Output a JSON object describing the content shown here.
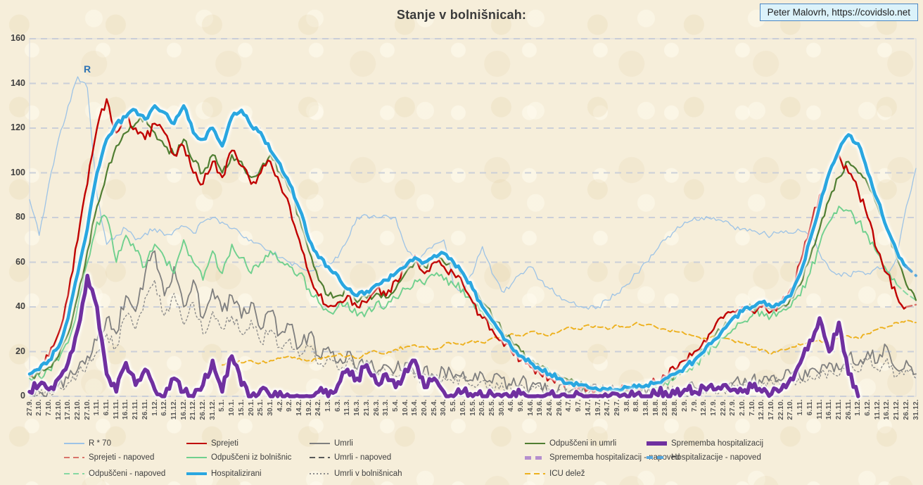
{
  "title": "Stanje v bolnišnicah:",
  "credit": "Peter Malovrh, https://covidslo.net",
  "annotation": {
    "r_label": "R"
  },
  "legend": {
    "items": [
      {
        "label": "R * 70",
        "series": "r70",
        "pos": "r1 c1"
      },
      {
        "label": "Sprejeti",
        "series": "sprejeti",
        "pos": "r1 c2"
      },
      {
        "label": "Umrli",
        "series": "umrli",
        "pos": "r1 c3"
      },
      {
        "label": "Odpuščeni in umrli",
        "series": "odpusceni_in_umrli",
        "pos": "r1 c4"
      },
      {
        "label": "Sprememba hospitalizacij",
        "series": "sprememba",
        "pos": "r1 c5"
      },
      {
        "label": "Sprejeti - napoved",
        "series": "sprejeti_napoved",
        "pos": "r2 c1"
      },
      {
        "label": "Odpuščeni iz bolnišnic",
        "series": "odpusceni_iz_bolnisnic",
        "pos": "r2 c2"
      },
      {
        "label": "Umrli - napoved",
        "series": "umrli_napoved",
        "pos": "r2 c3"
      },
      {
        "label": "Sprememba hospitalizacij - napoved",
        "series": "sprememba_napoved",
        "pos": "r2 c4"
      },
      {
        "label": "Hospitalizacije - napoved",
        "series": "hospitalizacije_napoved",
        "pos": "r2 c5"
      },
      {
        "label": "Odpuščeni - napoved",
        "series": "odpusceni_napoved",
        "pos": "r3 c1"
      },
      {
        "label": "Hospitalizirani",
        "series": "hospitalizirani",
        "pos": "r3 c2"
      },
      {
        "label": "Umrli v bolnišnicah",
        "series": "umrli_v_bolnisnicah",
        "pos": "r3 c3"
      },
      {
        "label": "ICU delež",
        "series": "icu_delez",
        "pos": "r3 c4"
      }
    ]
  },
  "chart_data": {
    "type": "line",
    "title": "Stanje v bolnišnicah:",
    "xlabel": "",
    "ylabel": "",
    "ylim": [
      0,
      160
    ],
    "y_ticks": [
      0,
      20,
      40,
      60,
      80,
      100,
      120,
      140,
      160
    ],
    "grid": "horizontal-dashed",
    "legend_position": "bottom",
    "categories": [
      "27.9.",
      "2.10.",
      "7.10.",
      "12.10.",
      "17.10.",
      "22.10.",
      "27.10.",
      "1.11.",
      "6.11.",
      "11.11.",
      "16.11.",
      "21.11.",
      "26.11.",
      "1.12.",
      "6.12.",
      "11.12.",
      "16.12.",
      "21.12.",
      "26.12.",
      "31.12.",
      "5.1.",
      "10.1.",
      "15.1.",
      "20.1.",
      "25.1.",
      "30.1.",
      "4.2.",
      "9.2.",
      "14.2.",
      "19.2.",
      "24.2.",
      "1.3.",
      "6.3.",
      "11.3.",
      "16.3.",
      "21.3.",
      "26.3.",
      "31.3.",
      "5.4.",
      "10.4.",
      "15.4.",
      "20.4.",
      "25.4.",
      "30.4.",
      "5.5.",
      "10.5.",
      "15.5.",
      "20.5.",
      "25.5.",
      "30.5.",
      "4.6.",
      "9.6.",
      "14.6.",
      "19.6.",
      "24.6.",
      "29.6.",
      "4.7.",
      "9.7.",
      "14.7.",
      "19.7.",
      "24.7.",
      "29.7.",
      "3.8.",
      "8.8.",
      "13.8.",
      "18.8.",
      "23.8.",
      "28.8.",
      "2.9.",
      "7.9.",
      "12.9.",
      "17.9.",
      "22.9.",
      "27.9.",
      "2.10.",
      "7.10.",
      "12.10.",
      "17.10.",
      "22.10.",
      "27.10.",
      "1.11.",
      "6.11.",
      "11.11.",
      "16.11.",
      "21.11.",
      "26.11.",
      "1.12.",
      "6.12.",
      "11.12.",
      "16.12.",
      "21.12.",
      "26.12.",
      "31.12."
    ],
    "series": [
      {
        "key": "r70",
        "name": "R * 70",
        "color": "#9dc3e6",
        "width": 1.3,
        "dash": "",
        "glow": false,
        "jitter": 1.3,
        "values": [
          88,
          72,
          95,
          115,
          130,
          143,
          138,
          90,
          68,
          72,
          75,
          70,
          73,
          75,
          72,
          74,
          76,
          73,
          78,
          80,
          78,
          75,
          72,
          70,
          68,
          65,
          62,
          60,
          58,
          56,
          58,
          60,
          62,
          70,
          80,
          81,
          80,
          81,
          80,
          67,
          60,
          64,
          68,
          70,
          50,
          47,
          55,
          67,
          55,
          47,
          50,
          55,
          58,
          52,
          48,
          45,
          42,
          40,
          39,
          40,
          43,
          46,
          50,
          55,
          60,
          65,
          70,
          74,
          78,
          80,
          79,
          80,
          78,
          76,
          75,
          74,
          73,
          72,
          74,
          73,
          74,
          73,
          64,
          57,
          55,
          54,
          56,
          55,
          58,
          55,
          62,
          85,
          102
        ]
      },
      {
        "key": "umrli_v_bolnisnicah",
        "name": "Umrli v bolnišnicah",
        "color": "#8c8c8c",
        "width": 1.4,
        "dash": "2 3.5",
        "glow": false,
        "jitter": 3,
        "values": [
          1,
          1,
          2,
          4,
          6,
          10,
          14,
          20,
          28,
          22,
          36,
          30,
          44,
          52,
          36,
          46,
          32,
          42,
          28,
          38,
          30,
          36,
          28,
          34,
          24,
          30,
          22,
          26,
          18,
          22,
          14,
          18,
          12,
          16,
          10,
          13,
          8,
          11,
          9,
          12,
          8,
          10,
          7,
          9,
          6,
          8,
          5,
          7,
          4,
          6,
          3,
          5,
          3,
          4,
          2,
          3,
          1,
          3,
          1,
          2,
          1,
          1,
          1,
          1,
          1,
          1,
          1,
          2,
          1,
          3,
          2,
          4,
          3,
          5,
          4,
          6,
          5,
          7,
          5,
          8,
          6,
          9,
          8,
          12,
          9,
          14,
          11,
          16,
          12,
          17,
          9,
          12,
          8
        ]
      },
      {
        "key": "umrli",
        "name": "Umrli",
        "color": "#7f7f7f",
        "width": 1.8,
        "dash": "",
        "glow": false,
        "jitter": 3.5,
        "values": [
          1,
          2,
          3,
          5,
          8,
          12,
          18,
          25,
          35,
          28,
          45,
          38,
          55,
          65,
          45,
          58,
          40,
          52,
          35,
          48,
          38,
          45,
          35,
          42,
          30,
          38,
          28,
          32,
          22,
          28,
          18,
          22,
          15,
          20,
          12,
          16,
          10,
          14,
          12,
          15,
          10,
          13,
          9,
          12,
          8,
          11,
          7,
          10,
          6,
          8,
          5,
          7,
          4,
          6,
          3,
          5,
          2,
          4,
          1,
          3,
          1,
          2,
          1,
          2,
          1,
          2,
          1,
          3,
          2,
          4,
          3,
          5,
          4,
          6,
          5,
          8,
          6,
          9,
          7,
          10,
          8,
          12,
          10,
          15,
          12,
          18,
          14,
          20,
          15,
          22,
          12,
          16,
          10
        ]
      },
      {
        "key": "icu_delez",
        "name": "ICU delež",
        "color": "#edb11f",
        "width": 1.9,
        "dash": "7 4",
        "glow": false,
        "jitter": 0.7,
        "start": 20,
        "values": [
          14,
          16,
          15,
          16,
          15,
          16,
          17,
          18,
          17,
          16,
          17,
          18,
          19,
          18,
          17,
          19,
          20,
          19,
          21,
          22,
          23,
          22,
          21,
          23,
          24,
          23,
          25,
          24,
          26,
          27,
          28,
          27,
          29,
          28,
          27,
          29,
          31,
          30,
          32,
          31,
          30,
          32,
          31,
          33,
          32,
          31,
          30,
          29,
          28,
          27,
          26,
          27,
          26,
          25,
          24,
          22,
          21,
          19,
          21,
          22,
          23,
          24,
          25,
          24,
          26,
          27,
          26,
          28,
          30,
          31,
          33,
          34,
          33
        ]
      },
      {
        "key": "odpusceni_iz_bolnisnic",
        "name": "Odpuščeni iz bolnišnic",
        "color": "#70d08e",
        "width": 1.9,
        "dash": "",
        "glow": false,
        "jitter": 2.2,
        "values": [
          8,
          9,
          12,
          16,
          24,
          40,
          60,
          78,
          80,
          60,
          72,
          65,
          58,
          68,
          62,
          55,
          70,
          60,
          52,
          65,
          55,
          68,
          62,
          55,
          60,
          65,
          60,
          58,
          55,
          48,
          42,
          38,
          40,
          42,
          36,
          38,
          42,
          40,
          44,
          48,
          52,
          50,
          54,
          52,
          50,
          48,
          42,
          38,
          32,
          27,
          22,
          18,
          15,
          12,
          10,
          8,
          6,
          5,
          4,
          3,
          2,
          2,
          3,
          3,
          4,
          4,
          6,
          8,
          11,
          14,
          18,
          22,
          26,
          30,
          33,
          36,
          38,
          36,
          38,
          40,
          45,
          55,
          68,
          78,
          85,
          83,
          78,
          72,
          64,
          56,
          50,
          null,
          null
        ]
      },
      {
        "key": "odpusceni_napoved",
        "name": "Odpuščeni - napoved",
        "color": "#86d8a2",
        "width": 2,
        "dash": "8 5",
        "glow": false,
        "jitter": 0,
        "start": 90,
        "values": [
          50,
          46,
          43
        ]
      },
      {
        "key": "odpusceni_in_umrli",
        "name": "Odpuščeni in umrli",
        "color": "#507e32",
        "width": 2.2,
        "dash": "",
        "glow": false,
        "jitter": 1.8,
        "values": [
          9,
          10,
          13,
          18,
          28,
          45,
          65,
          85,
          100,
          112,
          118,
          122,
          125,
          118,
          112,
          108,
          115,
          105,
          100,
          108,
          100,
          108,
          105,
          98,
          102,
          108,
          100,
          92,
          80,
          65,
          52,
          45,
          45,
          48,
          42,
          44,
          46,
          44,
          48,
          55,
          60,
          58,
          62,
          60,
          58,
          55,
          48,
          42,
          36,
          30,
          25,
          20,
          16,
          13,
          11,
          9,
          7,
          5,
          4,
          3,
          3,
          3,
          3,
          4,
          4,
          5,
          7,
          10,
          13,
          17,
          21,
          26,
          31,
          35,
          38,
          40,
          41,
          39,
          40,
          44,
          50,
          62,
          75,
          88,
          98,
          105,
          100,
          95,
          85,
          75,
          62,
          50,
          43
        ]
      },
      {
        "key": "sprejeti",
        "name": "Sprejeti",
        "color": "#c00000",
        "width": 2.4,
        "dash": "",
        "glow": false,
        "jitter": 2.2,
        "values": [
          10,
          13,
          18,
          28,
          45,
          70,
          95,
          120,
          133,
          118,
          125,
          120,
          115,
          122,
          118,
          108,
          112,
          100,
          95,
          105,
          98,
          110,
          103,
          95,
          100,
          105,
          95,
          85,
          70,
          55,
          45,
          40,
          42,
          45,
          40,
          42,
          48,
          45,
          52,
          58,
          63,
          55,
          60,
          58,
          55,
          50,
          42,
          35,
          30,
          25,
          20,
          16,
          13,
          10,
          8,
          7,
          5,
          4,
          3,
          3,
          2,
          3,
          3,
          4,
          5,
          6,
          9,
          12,
          16,
          20,
          25,
          30,
          35,
          38,
          40,
          38,
          40,
          38,
          42,
          48,
          60,
          75,
          90,
          100,
          108,
          100,
          92,
          80,
          65,
          55,
          45,
          40,
          null
        ]
      },
      {
        "key": "sprejeti_napoved",
        "name": "Sprejeti - napoved",
        "color": "#d9736a",
        "width": 2.4,
        "dash": "8 5",
        "glow": false,
        "jitter": 0,
        "start": 91,
        "values": [
          40,
          41
        ]
      },
      {
        "key": "umrli_napoved",
        "name": "Umrli - napoved",
        "color": "#595959",
        "width": 1.8,
        "dash": "8 5",
        "glow": false,
        "jitter": 0,
        "values": []
      },
      {
        "key": "hospitalizirani",
        "name": "Hospitalizirani",
        "color": "#2aa7e0",
        "width": 4.6,
        "dash": "",
        "glow": true,
        "jitter": 1.2,
        "values": [
          10,
          12,
          16,
          22,
          35,
          55,
          75,
          100,
          115,
          122,
          125,
          128,
          124,
          130,
          127,
          122,
          130,
          118,
          115,
          120,
          112,
          125,
          128,
          121,
          118,
          110,
          104,
          95,
          84,
          70,
          62,
          58,
          54,
          48,
          45,
          47,
          50,
          52,
          55,
          58,
          62,
          60,
          63,
          64,
          60,
          55,
          48,
          40,
          34,
          28,
          22,
          18,
          15,
          12,
          10,
          8,
          6,
          5,
          4,
          3,
          3,
          3,
          4,
          4,
          5,
          6,
          8,
          10,
          13,
          16,
          20,
          25,
          30,
          35,
          38,
          40,
          42,
          40,
          42,
          45,
          55,
          70,
          85,
          100,
          110,
          117,
          113,
          100,
          88,
          75,
          65,
          58,
          null
        ]
      },
      {
        "key": "hospitalizacije_napoved",
        "name": "Hospitalizacije - napoved",
        "color": "#58a7dd",
        "width": 3.8,
        "dash": "10 8",
        "glow": false,
        "jitter": 0,
        "start": 91,
        "values": [
          58,
          54
        ]
      },
      {
        "key": "sprememba",
        "name": "Sprememba hospitalizacij",
        "color": "#7030a0",
        "width": 5.4,
        "dash": "",
        "glow": true,
        "jitter": 2.5,
        "values": [
          2,
          5,
          3,
          8,
          15,
          30,
          54,
          40,
          10,
          2,
          15,
          5,
          12,
          3,
          0,
          8,
          2,
          0,
          5,
          16,
          2,
          18,
          5,
          0,
          3,
          0,
          2,
          0,
          0,
          0,
          2,
          0,
          5,
          12,
          8,
          14,
          6,
          10,
          4,
          12,
          16,
          4,
          8,
          2,
          0,
          2,
          0,
          0,
          1,
          0,
          0,
          1,
          0,
          0,
          1,
          0,
          0,
          1,
          0,
          0,
          0,
          1,
          0,
          1,
          0,
          1,
          2,
          1,
          3,
          2,
          4,
          3,
          5,
          3,
          2,
          4,
          2,
          1,
          3,
          8,
          15,
          25,
          35,
          20,
          33,
          10,
          0,
          null,
          null,
          null,
          null,
          null,
          null
        ]
      },
      {
        "key": "sprememba_napoved",
        "name": "Sprememba hospitalizacij - napoved",
        "color": "#b58fce",
        "width": 5,
        "dash": "10 8",
        "glow": false,
        "jitter": 0,
        "values": []
      }
    ]
  }
}
